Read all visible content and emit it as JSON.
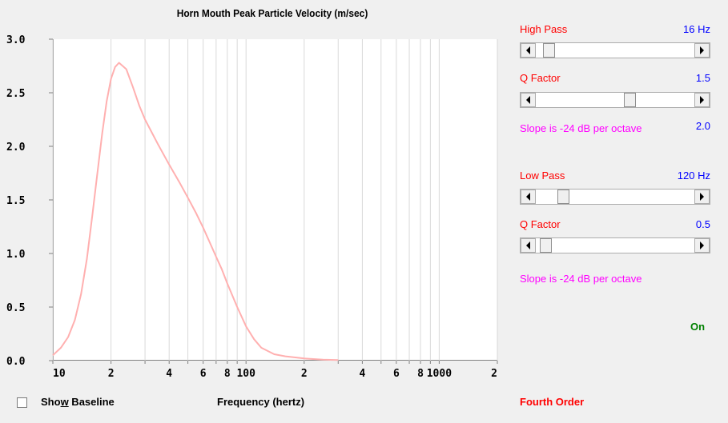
{
  "chart_data": {
    "type": "line",
    "title": "Horn Mouth Peak Particle Velocity (m/sec)",
    "xlabel": "Frequency (hertz)",
    "ylabel": "",
    "x_scale": "log",
    "xlim": [
      10,
      2000
    ],
    "ylim": [
      0,
      3.0
    ],
    "grid": true,
    "y_ticks": [
      "3.0",
      "2.5",
      "2.0",
      "1.5",
      "1.0",
      "0.5",
      "0.0"
    ],
    "y_tick_values": [
      3.0,
      2.5,
      2.0,
      1.5,
      1.0,
      0.5,
      0.0
    ],
    "x_ticks": [
      "10",
      "2",
      "4",
      "6",
      "8",
      "100",
      "2",
      "4",
      "6",
      "8",
      "1000",
      "2"
    ],
    "x_tick_values": [
      10,
      20,
      40,
      60,
      80,
      100,
      200,
      400,
      600,
      800,
      1000,
      2000
    ],
    "line_color": "#ffb0b0",
    "series": [
      {
        "x": [
          10,
          11,
          12,
          13,
          14,
          15,
          16,
          17,
          18,
          19,
          20,
          21,
          22,
          24,
          26,
          28,
          30,
          35,
          40,
          45,
          50,
          55,
          60,
          65,
          70,
          75,
          80,
          90,
          100,
          110,
          120,
          140,
          160,
          180,
          200,
          250,
          300
        ],
        "y": [
          0.05,
          0.12,
          0.22,
          0.38,
          0.62,
          0.95,
          1.35,
          1.75,
          2.12,
          2.42,
          2.63,
          2.74,
          2.78,
          2.72,
          2.55,
          2.38,
          2.25,
          2.02,
          1.83,
          1.67,
          1.52,
          1.38,
          1.24,
          1.1,
          0.97,
          0.85,
          0.72,
          0.5,
          0.32,
          0.2,
          0.12,
          0.06,
          0.04,
          0.03,
          0.02,
          0.01,
          0.005
        ]
      }
    ]
  },
  "bottom": {
    "show_baseline_prefix": "Sho",
    "show_baseline_mnemonic": "w",
    "show_baseline_suffix": " Baseline",
    "xlabel": "Frequency (hertz)"
  },
  "high_pass": {
    "label": "High Pass",
    "value": "16 Hz",
    "slider_fraction": 0.05,
    "q_label": "Q Factor",
    "q_value": "1.5",
    "q_slider_fraction": 0.6,
    "slope_text": "Slope is -24 dB per octave",
    "slope_value": "2.0"
  },
  "low_pass": {
    "label": "Low Pass",
    "value": "120 Hz",
    "slider_fraction": 0.15,
    "q_label": "Q Factor",
    "q_value": "0.5",
    "q_slider_fraction": 0.03,
    "slope_text": "Slope is -24 dB per octave"
  },
  "status": {
    "on_label": "On",
    "order_label": "Fourth Order"
  }
}
